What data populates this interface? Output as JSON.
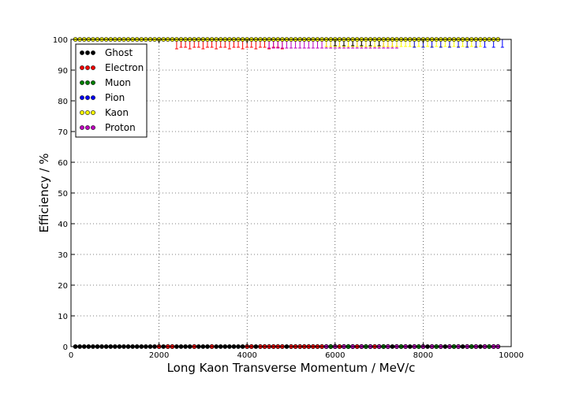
{
  "chart_data": {
    "type": "scatter",
    "title": "",
    "xlabel": "Long Kaon Transverse Momentum / MeV/c",
    "ylabel": "Efficiency / %",
    "xlim": [
      0,
      10000
    ],
    "ylim": [
      0,
      100
    ],
    "xticks": [
      0,
      2000,
      4000,
      6000,
      8000,
      10000
    ],
    "yticks": [
      0,
      10,
      20,
      30,
      40,
      50,
      60,
      70,
      80,
      90,
      100
    ],
    "grid": true,
    "legend": {
      "location": "top-left"
    },
    "series": [
      {
        "name": "Ghost",
        "color": "#000000",
        "x": [
          100,
          200,
          300,
          400,
          500,
          600,
          700,
          800,
          900,
          1000,
          1100,
          1200,
          1300,
          1400,
          1500,
          1600,
          1700,
          1800,
          1900,
          2000,
          2100,
          2200,
          2300,
          2400,
          2500,
          2600,
          2700,
          2800,
          2900,
          3000,
          3100,
          3200,
          3300,
          3400,
          3500,
          3600,
          3700,
          3800,
          3900,
          4000,
          4100,
          4200,
          4300,
          4400,
          4500,
          4600,
          4700,
          4800,
          4900,
          5000,
          5100,
          5200,
          5300,
          5400,
          5500,
          5600,
          5700,
          5800,
          5900,
          6000,
          6100,
          6200,
          6300,
          6400,
          6500,
          6600,
          6700,
          6800,
          6900,
          7000,
          7100,
          7200,
          7300,
          7400,
          7500,
          7600,
          7700,
          7800,
          7900,
          8000,
          8100,
          8200,
          8300,
          8400,
          8500,
          8600,
          8700,
          8800,
          8900,
          9000,
          9100,
          9200,
          9300,
          9400,
          9500,
          9600,
          9700
        ],
        "y": [
          0,
          0,
          0,
          0,
          0,
          0,
          0,
          0,
          0,
          0,
          0,
          0,
          0,
          0,
          0,
          0,
          0,
          0,
          0,
          0,
          0,
          0,
          0,
          0,
          0,
          0,
          0,
          0,
          0,
          0,
          0,
          0,
          0,
          0,
          0,
          0,
          0,
          0,
          0,
          0,
          0,
          0,
          0,
          0,
          0,
          0,
          0,
          0,
          0,
          0,
          0,
          0,
          0,
          0,
          0,
          0,
          0,
          0,
          0,
          0,
          0,
          0,
          0,
          0,
          0,
          0,
          0,
          0,
          0,
          0,
          0,
          0,
          0,
          0,
          0,
          0,
          0,
          0,
          0,
          0,
          0,
          0,
          0,
          0,
          0,
          0,
          0,
          0,
          0,
          0,
          0,
          0,
          0,
          0,
          0,
          0,
          0
        ]
      },
      {
        "name": "Electron",
        "color": "#ff0000",
        "x": [
          2000,
          2200,
          2300,
          2800,
          3200,
          4000,
          4100,
          4300,
          4400,
          4500,
          4600,
          4700,
          4800,
          5000,
          5100,
          5200,
          5300,
          5400,
          5500,
          5600,
          5700,
          5800,
          5900,
          6000,
          6100,
          6200,
          6300,
          6400,
          6500,
          6600,
          6700,
          6800,
          6900,
          7000,
          7100,
          7200
        ],
        "y": [
          0,
          0,
          0,
          0,
          0,
          0,
          0,
          0,
          0,
          0,
          0,
          0,
          0,
          0,
          0,
          0,
          0,
          0,
          0,
          0,
          0,
          0,
          0,
          0,
          0,
          0,
          0,
          0,
          0,
          0,
          0,
          0,
          0,
          0,
          0,
          0
        ]
      },
      {
        "name": "Muon",
        "color": "#008000",
        "x": [
          5900,
          6300,
          6700,
          7100,
          7500,
          7900,
          8300,
          8700,
          9100,
          9500
        ],
        "y": [
          0,
          0,
          0,
          0,
          0,
          0,
          0,
          0,
          0,
          0
        ]
      },
      {
        "name": "Pion",
        "color": "#0000ff",
        "x": [
          6000,
          6200,
          6400,
          6600,
          6800,
          7000,
          7200,
          7400,
          7600,
          7800,
          8000,
          8200,
          8400,
          8600,
          8800,
          9000,
          9200,
          9400,
          9600,
          9700
        ],
        "y": [
          0,
          0,
          0,
          0,
          0,
          0,
          0,
          0,
          0,
          0,
          0,
          0,
          0,
          0,
          0,
          0,
          0,
          0,
          0,
          0
        ]
      },
      {
        "name": "Kaon",
        "color": "#ffff00",
        "x": [
          100,
          200,
          300,
          400,
          500,
          600,
          700,
          800,
          900,
          1000,
          1100,
          1200,
          1300,
          1400,
          1500,
          1600,
          1700,
          1800,
          1900,
          2000,
          2100,
          2200,
          2300,
          2400,
          2500,
          2600,
          2700,
          2800,
          2900,
          3000,
          3100,
          3200,
          3300,
          3400,
          3500,
          3600,
          3700,
          3800,
          3900,
          4000,
          4100,
          4200,
          4300,
          4400,
          4500,
          4600,
          4700,
          4800,
          4900,
          5000,
          5100,
          5200,
          5300,
          5400,
          5500,
          5600,
          5700,
          5800,
          5900,
          6000,
          6100,
          6200,
          6300,
          6400,
          6500,
          6600,
          6700,
          6800,
          6900,
          7000,
          7100,
          7200,
          7300,
          7400,
          7500,
          7600,
          7700,
          7800,
          7900,
          8000,
          8100,
          8200,
          8300,
          8400,
          8500,
          8600,
          8700,
          8800,
          8900,
          9000,
          9100,
          9200,
          9300,
          9400,
          9500,
          9600,
          9700
        ],
        "y": [
          100,
          100,
          100,
          100,
          100,
          100,
          100,
          100,
          100,
          100,
          100,
          100,
          100,
          100,
          100,
          100,
          100,
          100,
          100,
          100,
          100,
          100,
          100,
          100,
          100,
          100,
          100,
          100,
          100,
          100,
          100,
          100,
          100,
          100,
          100,
          100,
          100,
          100,
          100,
          100,
          100,
          100,
          100,
          100,
          100,
          100,
          100,
          100,
          100,
          100,
          100,
          100,
          100,
          100,
          100,
          100,
          100,
          100,
          100,
          100,
          100,
          100,
          100,
          100,
          100,
          100,
          100,
          100,
          100,
          100,
          100,
          100,
          100,
          100,
          100,
          100,
          100,
          100,
          100,
          100,
          100,
          100,
          100,
          100,
          100,
          100,
          100,
          100,
          100,
          100,
          100,
          100,
          100,
          100,
          100,
          100,
          100
        ]
      },
      {
        "name": "Proton",
        "color": "#bf00bf",
        "x": [
          5800,
          6000,
          6200,
          6400,
          6600,
          6800,
          7000,
          7200,
          7400,
          7600,
          7800,
          8000,
          8200,
          8400,
          8600,
          8800,
          9000,
          9200,
          9400,
          9600,
          9700
        ],
        "y": [
          0,
          0,
          0,
          0,
          0,
          0,
          0,
          0,
          0,
          0,
          0,
          0,
          0,
          0,
          0,
          0,
          0,
          0,
          0,
          0,
          0
        ]
      }
    ]
  }
}
